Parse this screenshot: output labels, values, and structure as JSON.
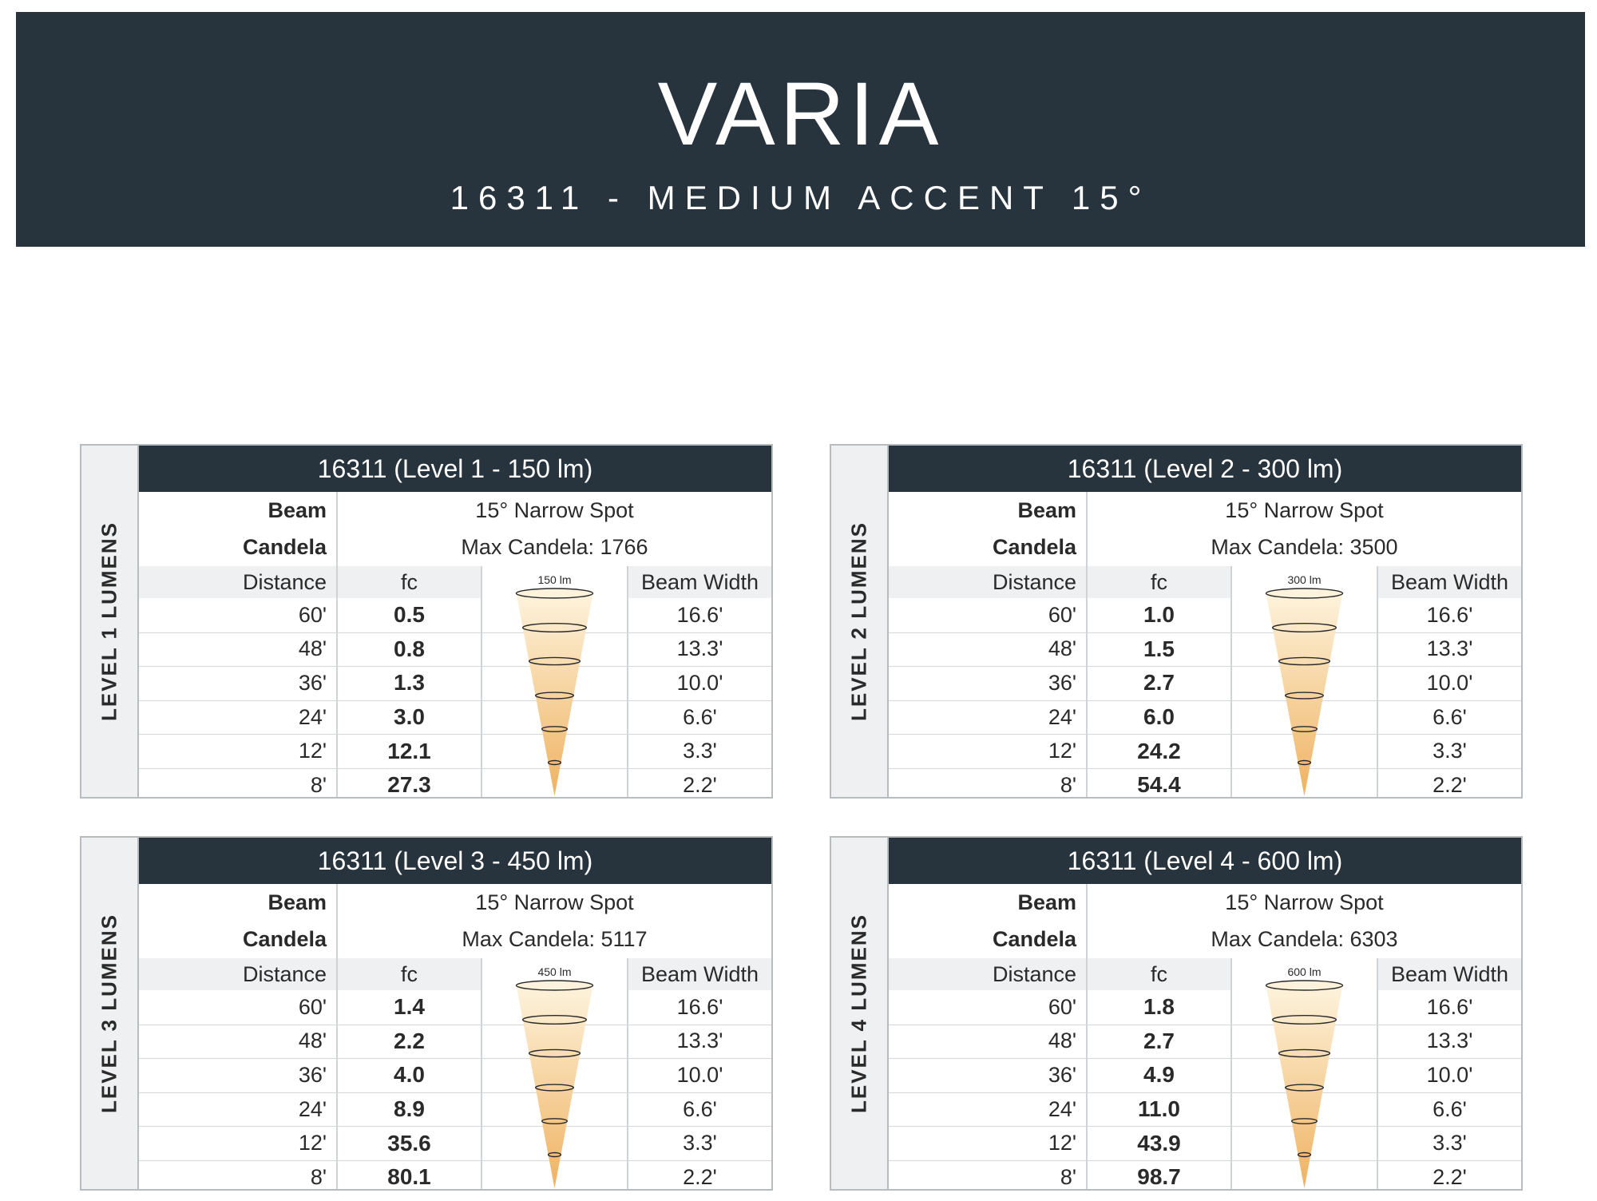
{
  "header": {
    "title": "VARIA",
    "subtitle": "16311 - MEDIUM ACCENT 15°"
  },
  "labels": {
    "beam": "Beam",
    "candela": "Candela",
    "distance": "Distance",
    "fc": "fc",
    "beam_width": "Beam Width"
  },
  "colors": {
    "header_bg": "#27343e",
    "cone_top": "#fdf3dc",
    "cone_bottom": "#efb261"
  },
  "panels": [
    {
      "side_label": "LEVEL 1 LUMENS",
      "title": "16311 (Level 1 - 150 lm)",
      "beam_value": "15° Narrow Spot",
      "candela_value": "Max Candela: 1766",
      "lumen_label": "150 lm",
      "rows": [
        {
          "distance": "60'",
          "fc": "0.5",
          "width": "16.6'"
        },
        {
          "distance": "48'",
          "fc": "0.8",
          "width": "13.3'"
        },
        {
          "distance": "36'",
          "fc": "1.3",
          "width": "10.0'"
        },
        {
          "distance": "24'",
          "fc": "3.0",
          "width": "6.6'"
        },
        {
          "distance": "12'",
          "fc": "12.1",
          "width": "3.3'"
        },
        {
          "distance": "8'",
          "fc": "27.3",
          "width": "2.2'"
        }
      ]
    },
    {
      "side_label": "LEVEL 2 LUMENS",
      "title": "16311 (Level 2 - 300 lm)",
      "beam_value": "15° Narrow Spot",
      "candela_value": "Max Candela: 3500",
      "lumen_label": "300 lm",
      "rows": [
        {
          "distance": "60'",
          "fc": "1.0",
          "width": "16.6'"
        },
        {
          "distance": "48'",
          "fc": "1.5",
          "width": "13.3'"
        },
        {
          "distance": "36'",
          "fc": "2.7",
          "width": "10.0'"
        },
        {
          "distance": "24'",
          "fc": "6.0",
          "width": "6.6'"
        },
        {
          "distance": "12'",
          "fc": "24.2",
          "width": "3.3'"
        },
        {
          "distance": "8'",
          "fc": "54.4",
          "width": "2.2'"
        }
      ]
    },
    {
      "side_label": "LEVEL 3 LUMENS",
      "title": "16311 (Level 3 - 450 lm)",
      "beam_value": "15° Narrow Spot",
      "candela_value": "Max Candela: 5117",
      "lumen_label": "450 lm",
      "rows": [
        {
          "distance": "60'",
          "fc": "1.4",
          "width": "16.6'"
        },
        {
          "distance": "48'",
          "fc": "2.2",
          "width": "13.3'"
        },
        {
          "distance": "36'",
          "fc": "4.0",
          "width": "10.0'"
        },
        {
          "distance": "24'",
          "fc": "8.9",
          "width": "6.6'"
        },
        {
          "distance": "12'",
          "fc": "35.6",
          "width": "3.3'"
        },
        {
          "distance": "8'",
          "fc": "80.1",
          "width": "2.2'"
        }
      ]
    },
    {
      "side_label": "LEVEL 4 LUMENS",
      "title": "16311 (Level 4 - 600 lm)",
      "beam_value": "15° Narrow Spot",
      "candela_value": "Max Candela: 6303",
      "lumen_label": "600 lm",
      "rows": [
        {
          "distance": "60'",
          "fc": "1.8",
          "width": "16.6'"
        },
        {
          "distance": "48'",
          "fc": "2.7",
          "width": "13.3'"
        },
        {
          "distance": "36'",
          "fc": "4.9",
          "width": "10.0'"
        },
        {
          "distance": "24'",
          "fc": "11.0",
          "width": "6.6'"
        },
        {
          "distance": "12'",
          "fc": "43.9",
          "width": "3.3'"
        },
        {
          "distance": "8'",
          "fc": "98.7",
          "width": "2.2'"
        }
      ]
    }
  ]
}
